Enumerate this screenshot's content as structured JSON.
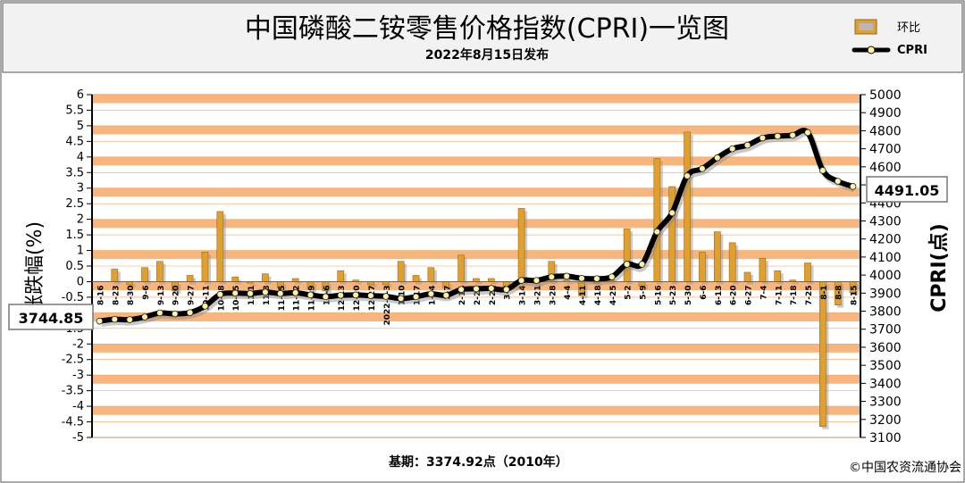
{
  "header": {
    "title": "中国磷酸二铵零售价格指数(CPRI)一览图",
    "subtitle": "2022年8月15日发布"
  },
  "legend": {
    "bar_label": "环比",
    "line_label": "CPRI"
  },
  "footer": {
    "base_text": "基期：3374.92点（2010年）",
    "copyright": "©中国农资流通协会"
  },
  "colors": {
    "band_orange": "#f8b57e",
    "bar_fill": "#e0a030",
    "line": "#000000",
    "marker_fill": "#fff2a8"
  },
  "chart_data": {
    "type": "bar+line",
    "categories": [
      "8-16",
      "8-23",
      "8-30",
      "9-6",
      "9-13",
      "9-20",
      "9-27",
      "10-11",
      "10-18",
      "10-25",
      "11-1",
      "11-8",
      "11-15",
      "11-22",
      "11-29",
      "12-6",
      "12-13",
      "12-20",
      "12-27",
      "2022-1-3",
      "1-10",
      "1-17",
      "1-24",
      "2-7",
      "2-14",
      "2-21",
      "2-28",
      "3-7",
      "3-14",
      "3-21",
      "3-28",
      "4-4",
      "4-11",
      "4-18",
      "4-25",
      "5-2",
      "5-9",
      "5-16",
      "5-23",
      "5-30",
      "6-6",
      "6-13",
      "6-20",
      "6-27",
      "7-4",
      "7-11",
      "7-18",
      "7-25",
      "8-1",
      "8-8",
      "8-15"
    ],
    "series": [
      {
        "name": "环比",
        "axis": "left",
        "values": [
          0,
          0.4,
          -0.1,
          0.45,
          0.65,
          -0.3,
          0.2,
          0.95,
          2.25,
          0.15,
          -0.05,
          0.25,
          -0.2,
          0.1,
          -0.25,
          -0.3,
          0.35,
          0.05,
          -0.1,
          -0.1,
          0.65,
          0.2,
          0.45,
          -0.2,
          0.85,
          0.1,
          0.1,
          -0.2,
          2.35,
          -0.05,
          0.65,
          0.05,
          -0.45,
          -0.05,
          0.05,
          1.7,
          -0.15,
          3.95,
          3.05,
          4.8,
          0.95,
          1.6,
          1.25,
          0.3,
          0.75,
          0.35,
          0.05,
          0.6,
          -4.65,
          -0.75,
          -0.35
        ]
      },
      {
        "name": "CPRI",
        "axis": "right",
        "values": [
          3744.85,
          3755,
          3753,
          3768,
          3790,
          3785,
          3792,
          3828,
          3893,
          3900,
          3898,
          3906,
          3898,
          3902,
          3890,
          3880,
          3888,
          3890,
          3886,
          3882,
          3870,
          3880,
          3896,
          3888,
          3920,
          3924,
          3926,
          3920,
          3970,
          3970,
          3990,
          3994,
          3982,
          3980,
          3990,
          4060,
          4060,
          4240,
          4345,
          4550,
          4590,
          4650,
          4700,
          4720,
          4760,
          4770,
          4775,
          4790,
          4580,
          4520,
          4491.05
        ]
      }
    ],
    "start_label": "3744.85",
    "end_label": "4491.05",
    "y_left": {
      "label": "涨跌幅(%)",
      "min": -5,
      "max": 6,
      "step": 0.5
    },
    "y_right": {
      "label": "CPRI(点)",
      "min": 3100,
      "max": 5000,
      "step": 100
    },
    "legend_position": "top-right",
    "grid": "horizontal orange bands"
  }
}
